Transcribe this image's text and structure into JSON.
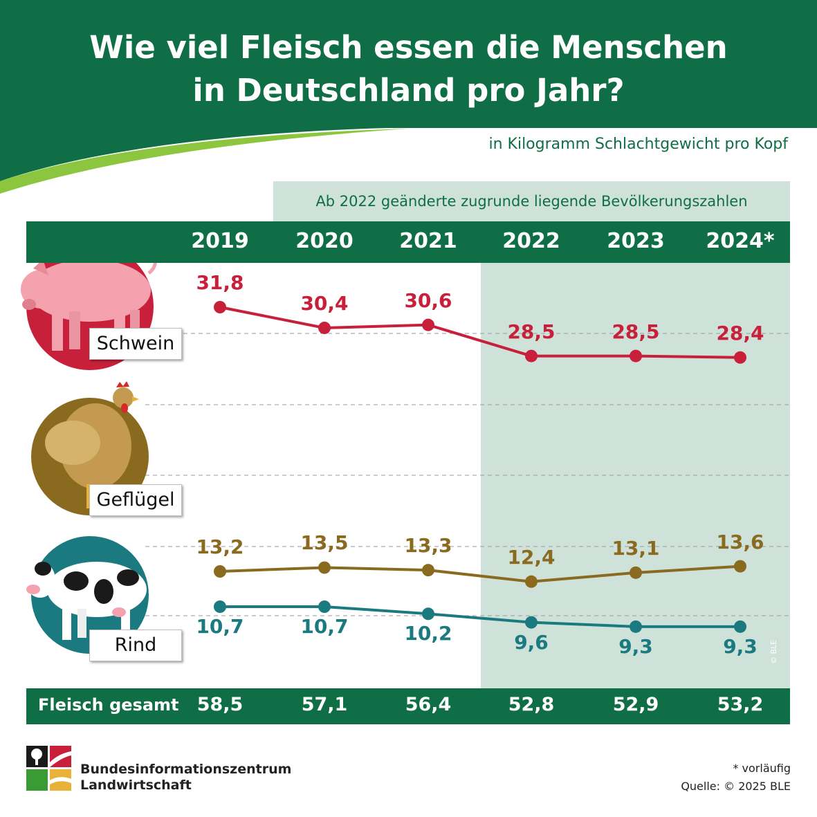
{
  "header": {
    "title_line1": "Wie viel Fleisch essen die Menschen",
    "title_line2": "in Deutschland pro Jahr?",
    "subtitle": "in Kilogramm Schlachtgewicht pro Kopf",
    "note": "Ab 2022 geänderte zugrunde liegende Bevölkerungszahlen"
  },
  "categories_labels": {
    "pig": "Schwein",
    "poultry": "Geflügel",
    "beef": "Rind"
  },
  "total_label": "Fleisch gesamt",
  "colors": {
    "green": "#0f6e45",
    "pig": "#c8203a",
    "poultry": "#8a6a1f",
    "beef": "#1b7a80",
    "highlight": "#cfe2da"
  },
  "chart_data": {
    "type": "line",
    "title": "Wie viel Fleisch essen die Menschen in Deutschland pro Jahr?",
    "ylabel": "in Kilogramm Schlachtgewicht pro Kopf",
    "categories": [
      "2019",
      "2020",
      "2021",
      "2022",
      "2023",
      "2024*"
    ],
    "highlight_from": "2022",
    "series": [
      {
        "name": "Schwein",
        "values": [
          31.8,
          30.4,
          30.6,
          28.5,
          28.5,
          28.4
        ],
        "labels": [
          "31,8",
          "30,4",
          "30,6",
          "28,5",
          "28,5",
          "28,4"
        ]
      },
      {
        "name": "Geflügel",
        "values": [
          13.2,
          13.5,
          13.3,
          12.4,
          13.1,
          13.6
        ],
        "labels": [
          "13,2",
          "13,5",
          "13,3",
          "12,4",
          "13,1",
          "13,6"
        ]
      },
      {
        "name": "Rind",
        "values": [
          10.7,
          10.7,
          10.2,
          9.6,
          9.3,
          9.3
        ],
        "labels": [
          "10,7",
          "10,7",
          "10,2",
          "9,6",
          "9,3",
          "9,3"
        ]
      }
    ],
    "totals": [
      58.5,
      57.1,
      56.4,
      52.8,
      52.9,
      53.2
    ],
    "totals_labels": [
      "58,5",
      "57,1",
      "56,4",
      "52,8",
      "52,9",
      "53,2"
    ]
  },
  "footer": {
    "org_line1": "Bundesinformationszentrum",
    "org_line2": "Landwirtschaft",
    "footnote": "* vorläufig",
    "source": "Quelle: © 2025 BLE",
    "copyright": "© BLE"
  }
}
